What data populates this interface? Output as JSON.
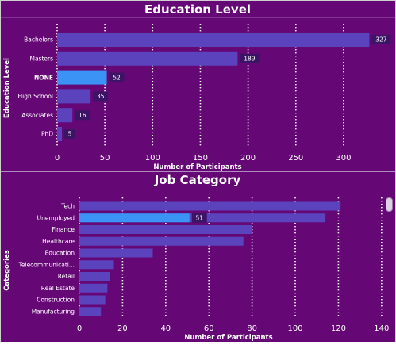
{
  "colors": {
    "background": "#650775",
    "bar": "#5b43bd",
    "bar_highlight": "#3a93f5",
    "label_box": "#3b1466",
    "grid": "#ffffff",
    "text": "#ffffff"
  },
  "chart_data": [
    {
      "type": "bar",
      "orientation": "horizontal",
      "title": "Education Level",
      "xlabel": "Number of Participants",
      "ylabel": "Education Level",
      "categories": [
        "Bachelors",
        "Masters",
        "NONE",
        "High School",
        "Associates",
        "PhD"
      ],
      "values": [
        327,
        189,
        52,
        35,
        16,
        5
      ],
      "data_labels": [
        "327",
        "189",
        "52",
        "35",
        "16",
        "5"
      ],
      "highlighted_category": "NONE",
      "xlim": [
        0,
        330
      ],
      "xticks": [
        0,
        50,
        100,
        150,
        200,
        250,
        300
      ],
      "grid": true,
      "legend": "none"
    },
    {
      "type": "bar",
      "orientation": "horizontal",
      "title": "Job Category",
      "xlabel": "Number of Participants",
      "ylabel": "Categories",
      "categories": [
        "Tech",
        "Unemployed",
        "Finance",
        "Healthcare",
        "Education",
        "Telecommunicati...",
        "Retail",
        "Real Estate",
        "Construction",
        "Manufacturing"
      ],
      "values": [
        121,
        114,
        80,
        76,
        34,
        16,
        14,
        13,
        12,
        10
      ],
      "highlight_values": [
        null,
        51,
        null,
        null,
        null,
        null,
        null,
        null,
        null,
        null
      ],
      "data_labels": [
        "",
        "51",
        "",
        "",
        "",
        "",
        "",
        "",
        "",
        ""
      ],
      "highlighted_category": "Unemployed",
      "xlim": [
        0,
        143
      ],
      "xticks": [
        0,
        20,
        40,
        60,
        80,
        100,
        120,
        140
      ],
      "grid": true,
      "legend": "none"
    }
  ]
}
